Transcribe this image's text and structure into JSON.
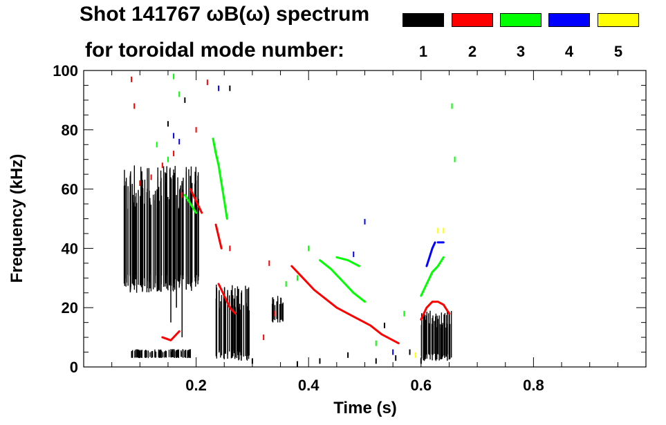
{
  "chart_data": {
    "type": "scatter",
    "title_line1": "Shot 141767 ωB(ω) spectrum",
    "title_line2": "for toroidal mode number:",
    "xlabel": "Time (s)",
    "ylabel": "Frequency (kHz)",
    "xlim": [
      0.0,
      1.0
    ],
    "ylim": [
      0,
      100
    ],
    "xticks": [
      0.2,
      0.4,
      0.6,
      0.8
    ],
    "xtick_labels": [
      "0.2",
      "0.4",
      "0.6",
      "0.8"
    ],
    "yticks": [
      0,
      20,
      40,
      60,
      80,
      100
    ],
    "ytick_labels": [
      "0",
      "20",
      "40",
      "60",
      "80",
      "100"
    ],
    "legend": [
      {
        "label": "1",
        "color": "#000000"
      },
      {
        "label": "2",
        "color": "#ff0000"
      },
      {
        "label": "3",
        "color": "#00ff00"
      },
      {
        "label": "4",
        "color": "#0000ff"
      },
      {
        "label": "5",
        "color": "#ffff00"
      }
    ],
    "series": [
      {
        "name": "n=1",
        "color": "#000000",
        "regions": [
          {
            "t0": 0.072,
            "t1": 0.205,
            "f0": 25,
            "f1": 68
          },
          {
            "t0": 0.085,
            "t1": 0.19,
            "f0": 3,
            "f1": 6
          },
          {
            "t0": 0.235,
            "t1": 0.295,
            "f0": 2,
            "f1": 28
          },
          {
            "t0": 0.335,
            "t1": 0.355,
            "f0": 15,
            "f1": 24
          },
          {
            "t0": 0.6,
            "t1": 0.655,
            "f0": 2,
            "f1": 19
          }
        ],
        "streaks": [
          {
            "t": 0.155,
            "f0": 15,
            "f1": 64
          },
          {
            "t": 0.165,
            "f0": 20,
            "f1": 58
          },
          {
            "t": 0.175,
            "f0": 10,
            "f1": 62
          },
          {
            "t": 0.185,
            "f0": 28,
            "f1": 56
          },
          {
            "t": 0.2,
            "f0": 30,
            "f1": 58
          }
        ],
        "points": [
          [
            0.26,
            94
          ],
          [
            0.3,
            2
          ],
          [
            0.38,
            1
          ],
          [
            0.42,
            2
          ],
          [
            0.47,
            4
          ],
          [
            0.52,
            2
          ],
          [
            0.535,
            14
          ],
          [
            0.555,
            3
          ],
          [
            0.58,
            5
          ],
          [
            0.6,
            2
          ],
          [
            0.15,
            82
          ],
          [
            0.18,
            90
          ]
        ]
      },
      {
        "name": "n=2",
        "color": "#ff0000",
        "tracks": [
          [
            [
              0.235,
              48
            ],
            [
              0.24,
              44
            ],
            [
              0.245,
              40
            ]
          ],
          [
            [
              0.24,
              28
            ],
            [
              0.25,
              24
            ],
            [
              0.26,
              20
            ],
            [
              0.27,
              18
            ]
          ],
          [
            [
              0.37,
              34
            ],
            [
              0.39,
              30
            ],
            [
              0.41,
              26
            ],
            [
              0.43,
              23
            ],
            [
              0.45,
              20
            ],
            [
              0.47,
              18
            ],
            [
              0.49,
              16
            ],
            [
              0.51,
              14
            ],
            [
              0.53,
              11
            ],
            [
              0.56,
              8
            ]
          ],
          [
            [
              0.6,
              16
            ],
            [
              0.61,
              20
            ],
            [
              0.62,
              22
            ],
            [
              0.63,
              22
            ],
            [
              0.64,
              21
            ],
            [
              0.65,
              18
            ]
          ],
          [
            [
              0.19,
              60
            ],
            [
              0.2,
              56
            ],
            [
              0.21,
              52
            ]
          ],
          [
            [
              0.14,
              10
            ],
            [
              0.155,
              9
            ],
            [
              0.17,
              12
            ]
          ]
        ],
        "points": [
          [
            0.085,
            97
          ],
          [
            0.09,
            88
          ],
          [
            0.1,
            62
          ],
          [
            0.12,
            64
          ],
          [
            0.14,
            68
          ],
          [
            0.16,
            72
          ],
          [
            0.175,
            58
          ],
          [
            0.2,
            80
          ],
          [
            0.33,
            35
          ],
          [
            0.32,
            10
          ],
          [
            0.22,
            96
          ],
          [
            0.26,
            40
          ],
          [
            0.34,
            18
          ]
        ]
      },
      {
        "name": "n=3",
        "color": "#00ff00",
        "tracks": [
          [
            [
              0.23,
              77
            ],
            [
              0.235,
              72
            ],
            [
              0.24,
              68
            ],
            [
              0.245,
              62
            ],
            [
              0.25,
              56
            ],
            [
              0.255,
              50
            ]
          ],
          [
            [
              0.42,
              36
            ],
            [
              0.44,
              33
            ],
            [
              0.46,
              29
            ],
            [
              0.48,
              25
            ],
            [
              0.5,
              22
            ]
          ],
          [
            [
              0.45,
              37
            ],
            [
              0.47,
              36
            ],
            [
              0.49,
              34
            ]
          ],
          [
            [
              0.6,
              24
            ],
            [
              0.61,
              28
            ],
            [
              0.62,
              32
            ],
            [
              0.63,
              34
            ],
            [
              0.64,
              37
            ]
          ],
          [
            [
              0.18,
              58
            ],
            [
              0.19,
              55
            ],
            [
              0.2,
              52
            ]
          ]
        ],
        "points": [
          [
            0.16,
            98
          ],
          [
            0.17,
            92
          ],
          [
            0.13,
            75
          ],
          [
            0.15,
            70
          ],
          [
            0.655,
            88
          ],
          [
            0.66,
            70
          ],
          [
            0.36,
            28
          ],
          [
            0.38,
            30
          ],
          [
            0.52,
            8
          ],
          [
            0.57,
            18
          ],
          [
            0.4,
            40
          ]
        ]
      },
      {
        "name": "n=4",
        "color": "#0000ff",
        "tracks": [
          [
            [
              0.61,
              34
            ],
            [
              0.615,
              37
            ],
            [
              0.62,
              40
            ],
            [
              0.625,
              42
            ]
          ],
          [
            [
              0.63,
              42
            ],
            [
              0.64,
              42
            ]
          ]
        ],
        "points": [
          [
            0.16,
            78
          ],
          [
            0.17,
            76
          ],
          [
            0.24,
            94
          ],
          [
            0.48,
            38
          ],
          [
            0.5,
            49
          ],
          [
            0.55,
            5
          ]
        ]
      },
      {
        "name": "n=5",
        "color": "#ffff00",
        "points": [
          [
            0.63,
            46
          ],
          [
            0.64,
            46
          ],
          [
            0.59,
            4
          ]
        ]
      }
    ]
  }
}
